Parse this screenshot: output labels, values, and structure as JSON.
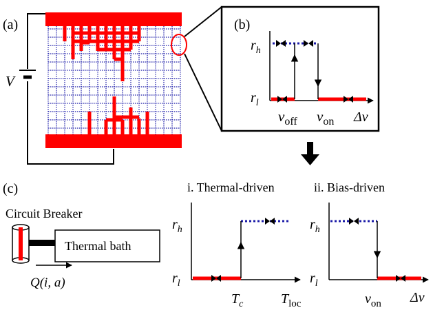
{
  "panels": {
    "a": {
      "label": "(a)",
      "voltage": "V"
    },
    "b": {
      "label": "(b)",
      "y_high": {
        "base": "r",
        "sub": "h"
      },
      "y_low": {
        "base": "r",
        "sub": "l"
      },
      "x_off": {
        "base": "v",
        "sub": "off"
      },
      "x_on": {
        "base": "v",
        "sub": "on"
      },
      "x_axis": "Δv"
    },
    "c": {
      "label": "(c)",
      "breaker_label": "Circuit Breaker",
      "bath_label": "Thermal bath",
      "flow_label": "Q(i, a)",
      "plot_i": {
        "title": "i. Thermal-driven",
        "y_high": {
          "base": "r",
          "sub": "h"
        },
        "y_low": {
          "base": "r",
          "sub": "l"
        },
        "x_crit": {
          "base": "T",
          "sub": "c"
        },
        "x_axis": {
          "base": "T",
          "sub": "loc"
        }
      },
      "plot_ii": {
        "title": "ii. Bias-driven",
        "y_high": {
          "base": "r",
          "sub": "h"
        },
        "y_low": {
          "base": "r",
          "sub": "l"
        },
        "x_on": {
          "base": "v",
          "sub": "on"
        },
        "x_axis": "Δv"
      }
    }
  },
  "colors": {
    "conductive": "#ff0000",
    "insulating": "#1a1aa8",
    "line": "#000000"
  }
}
